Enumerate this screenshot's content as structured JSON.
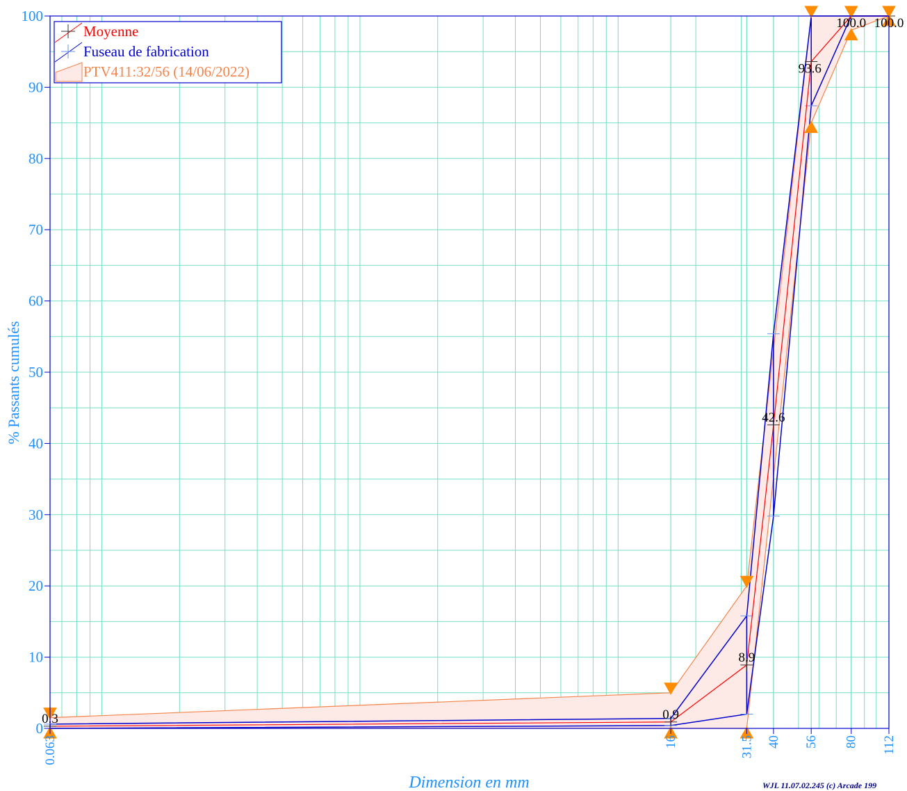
{
  "chart_data": {
    "type": "line",
    "title": "",
    "xlabel": "Dimension en mm",
    "ylabel": "% Passants cumulés",
    "x_scale": "log",
    "x_ticks": [
      "0.063",
      "16",
      "31.5",
      "40",
      "56",
      "80",
      "112"
    ],
    "y_ticks": [
      "0",
      "10",
      "20",
      "30",
      "40",
      "50",
      "60",
      "70",
      "80",
      "90",
      "100"
    ],
    "ylim": [
      0,
      100
    ],
    "grid": true,
    "legend_position": "top-left",
    "legend": [
      {
        "label": "Moyenne",
        "color": "#ff0000"
      },
      {
        "label": "Fuseau de fabrication",
        "color": "#0000cd"
      },
      {
        "label": "PTV411:32/56 (14/06/2022)",
        "color": "#f4844a"
      }
    ],
    "series": [
      {
        "name": "Moyenne",
        "color": "#ff0000",
        "x": [
          0.063,
          16,
          31.5,
          40,
          56,
          80,
          112
        ],
        "y": [
          0.3,
          0.9,
          8.9,
          42.6,
          93.6,
          100.0,
          100.0
        ],
        "labels": [
          "0.3",
          "0.9",
          "8.9",
          "42.6",
          "93.6",
          "100.0",
          "100.0"
        ]
      }
    ],
    "fuseau_fabrication": {
      "name": "Fuseau de fabrication",
      "color": "#0000cd",
      "x": [
        0.063,
        16,
        31.5,
        40,
        56,
        80,
        112
      ],
      "upper": [
        0.6,
        1.4,
        15.8,
        55.4,
        100.0,
        100.0,
        100.0
      ],
      "lower": [
        0.0,
        0.4,
        2.0,
        29.8,
        87.4,
        100.0,
        100.0
      ]
    },
    "fuseau_specification": {
      "name": "PTV411:32/56 (14/06/2022)",
      "color": "#f4844a",
      "fill": "#fde9e6",
      "x": [
        0.063,
        16,
        31.5,
        56,
        80,
        112
      ],
      "upper": [
        1.5,
        5.0,
        20.0,
        100.0,
        100.0,
        100.0
      ],
      "lower": [
        0.0,
        0.0,
        0.0,
        85.0,
        98.0,
        100.0
      ]
    }
  },
  "footer": {
    "credit": "WJL 11.07.02.245 (c) Arcade 199"
  }
}
